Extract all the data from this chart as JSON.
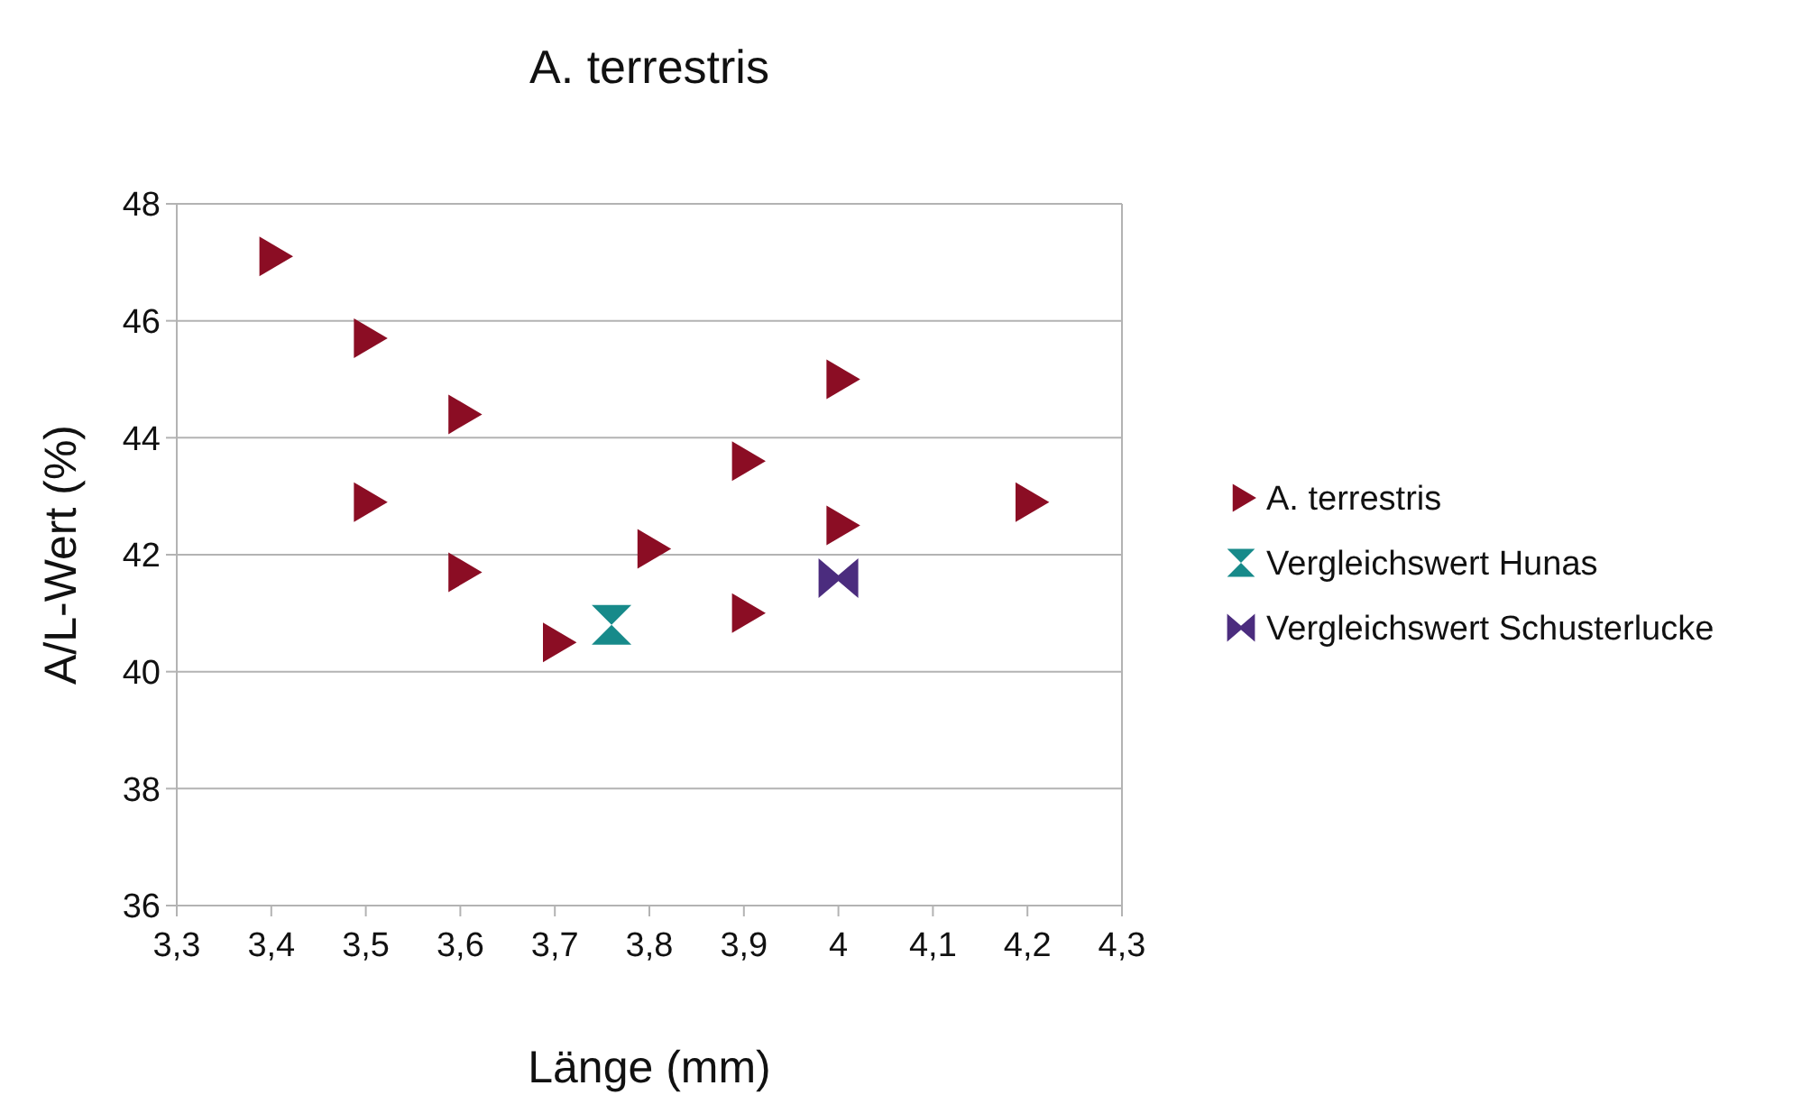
{
  "chart_data": {
    "type": "scatter",
    "title": "A. terrestris",
    "xlabel": "Länge (mm)",
    "ylabel": "A/L-Wert (%)",
    "xlim": [
      3.3,
      4.3
    ],
    "xticks": [
      {
        "value": 3.3,
        "label": "3,3"
      },
      {
        "value": 3.4,
        "label": "3,4"
      },
      {
        "value": 3.5,
        "label": "3,5"
      },
      {
        "value": 3.6,
        "label": "3,6"
      },
      {
        "value": 3.7,
        "label": "3,7"
      },
      {
        "value": 3.8,
        "label": "3,8"
      },
      {
        "value": 3.9,
        "label": "3,9"
      },
      {
        "value": 4,
        "label": "4"
      },
      {
        "value": 4.1,
        "label": "4,1"
      },
      {
        "value": 4.2,
        "label": "4,2"
      },
      {
        "value": 4.3,
        "label": "4,3"
      }
    ],
    "ylim": [
      36,
      48
    ],
    "yticks": [
      36,
      38,
      40,
      42,
      44,
      46,
      48
    ],
    "grid": "y",
    "legend": "right",
    "series": [
      {
        "name": "A. terrestris",
        "color": "#8b0d24",
        "marker": "triangle",
        "x": [
          3.4,
          3.5,
          3.5,
          3.6,
          3.6,
          3.7,
          3.8,
          3.9,
          3.9,
          4.0,
          4.0,
          4.2
        ],
        "values": [
          47.1,
          45.7,
          42.9,
          44.4,
          41.7,
          40.5,
          42.1,
          43.6,
          41.0,
          45.0,
          42.5,
          42.9
        ]
      },
      {
        "name": "Vergleichswert Hunas",
        "color": "#178a8a",
        "x": [
          3.76
        ],
        "values": [
          40.8
        ]
      },
      {
        "name": "Vergleichswert Schusterlucke",
        "color": "#4b2c7e",
        "x": [
          4.0
        ],
        "values": [
          41.6
        ]
      }
    ]
  }
}
